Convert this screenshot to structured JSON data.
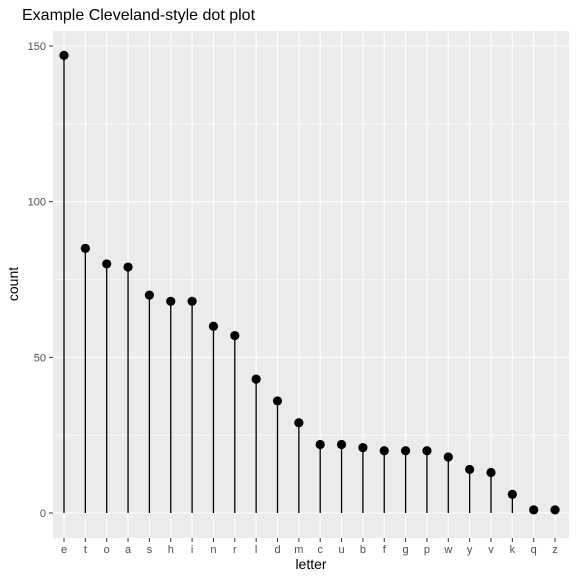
{
  "chart_data": {
    "type": "scatter",
    "style": "lollipop",
    "title": "Example Cleveland-style dot plot",
    "xlabel": "letter",
    "ylabel": "count",
    "ylim": [
      0,
      155
    ],
    "yticks": [
      0,
      50,
      100,
      150
    ],
    "grid": true,
    "legend": "none",
    "categories": [
      "e",
      "t",
      "o",
      "a",
      "s",
      "h",
      "i",
      "n",
      "r",
      "l",
      "d",
      "m",
      "c",
      "u",
      "b",
      "f",
      "g",
      "p",
      "w",
      "y",
      "v",
      "k",
      "q",
      "z"
    ],
    "values": [
      147,
      85,
      80,
      79,
      70,
      68,
      68,
      60,
      57,
      43,
      36,
      29,
      22,
      22,
      21,
      20,
      20,
      20,
      18,
      14,
      13,
      6,
      1,
      1
    ]
  },
  "colors": {
    "panel_background": "#ebebeb",
    "grid_major": "#ffffff",
    "point": "#000000",
    "segment": "#000000",
    "tick_label": "#4d4d4d"
  }
}
